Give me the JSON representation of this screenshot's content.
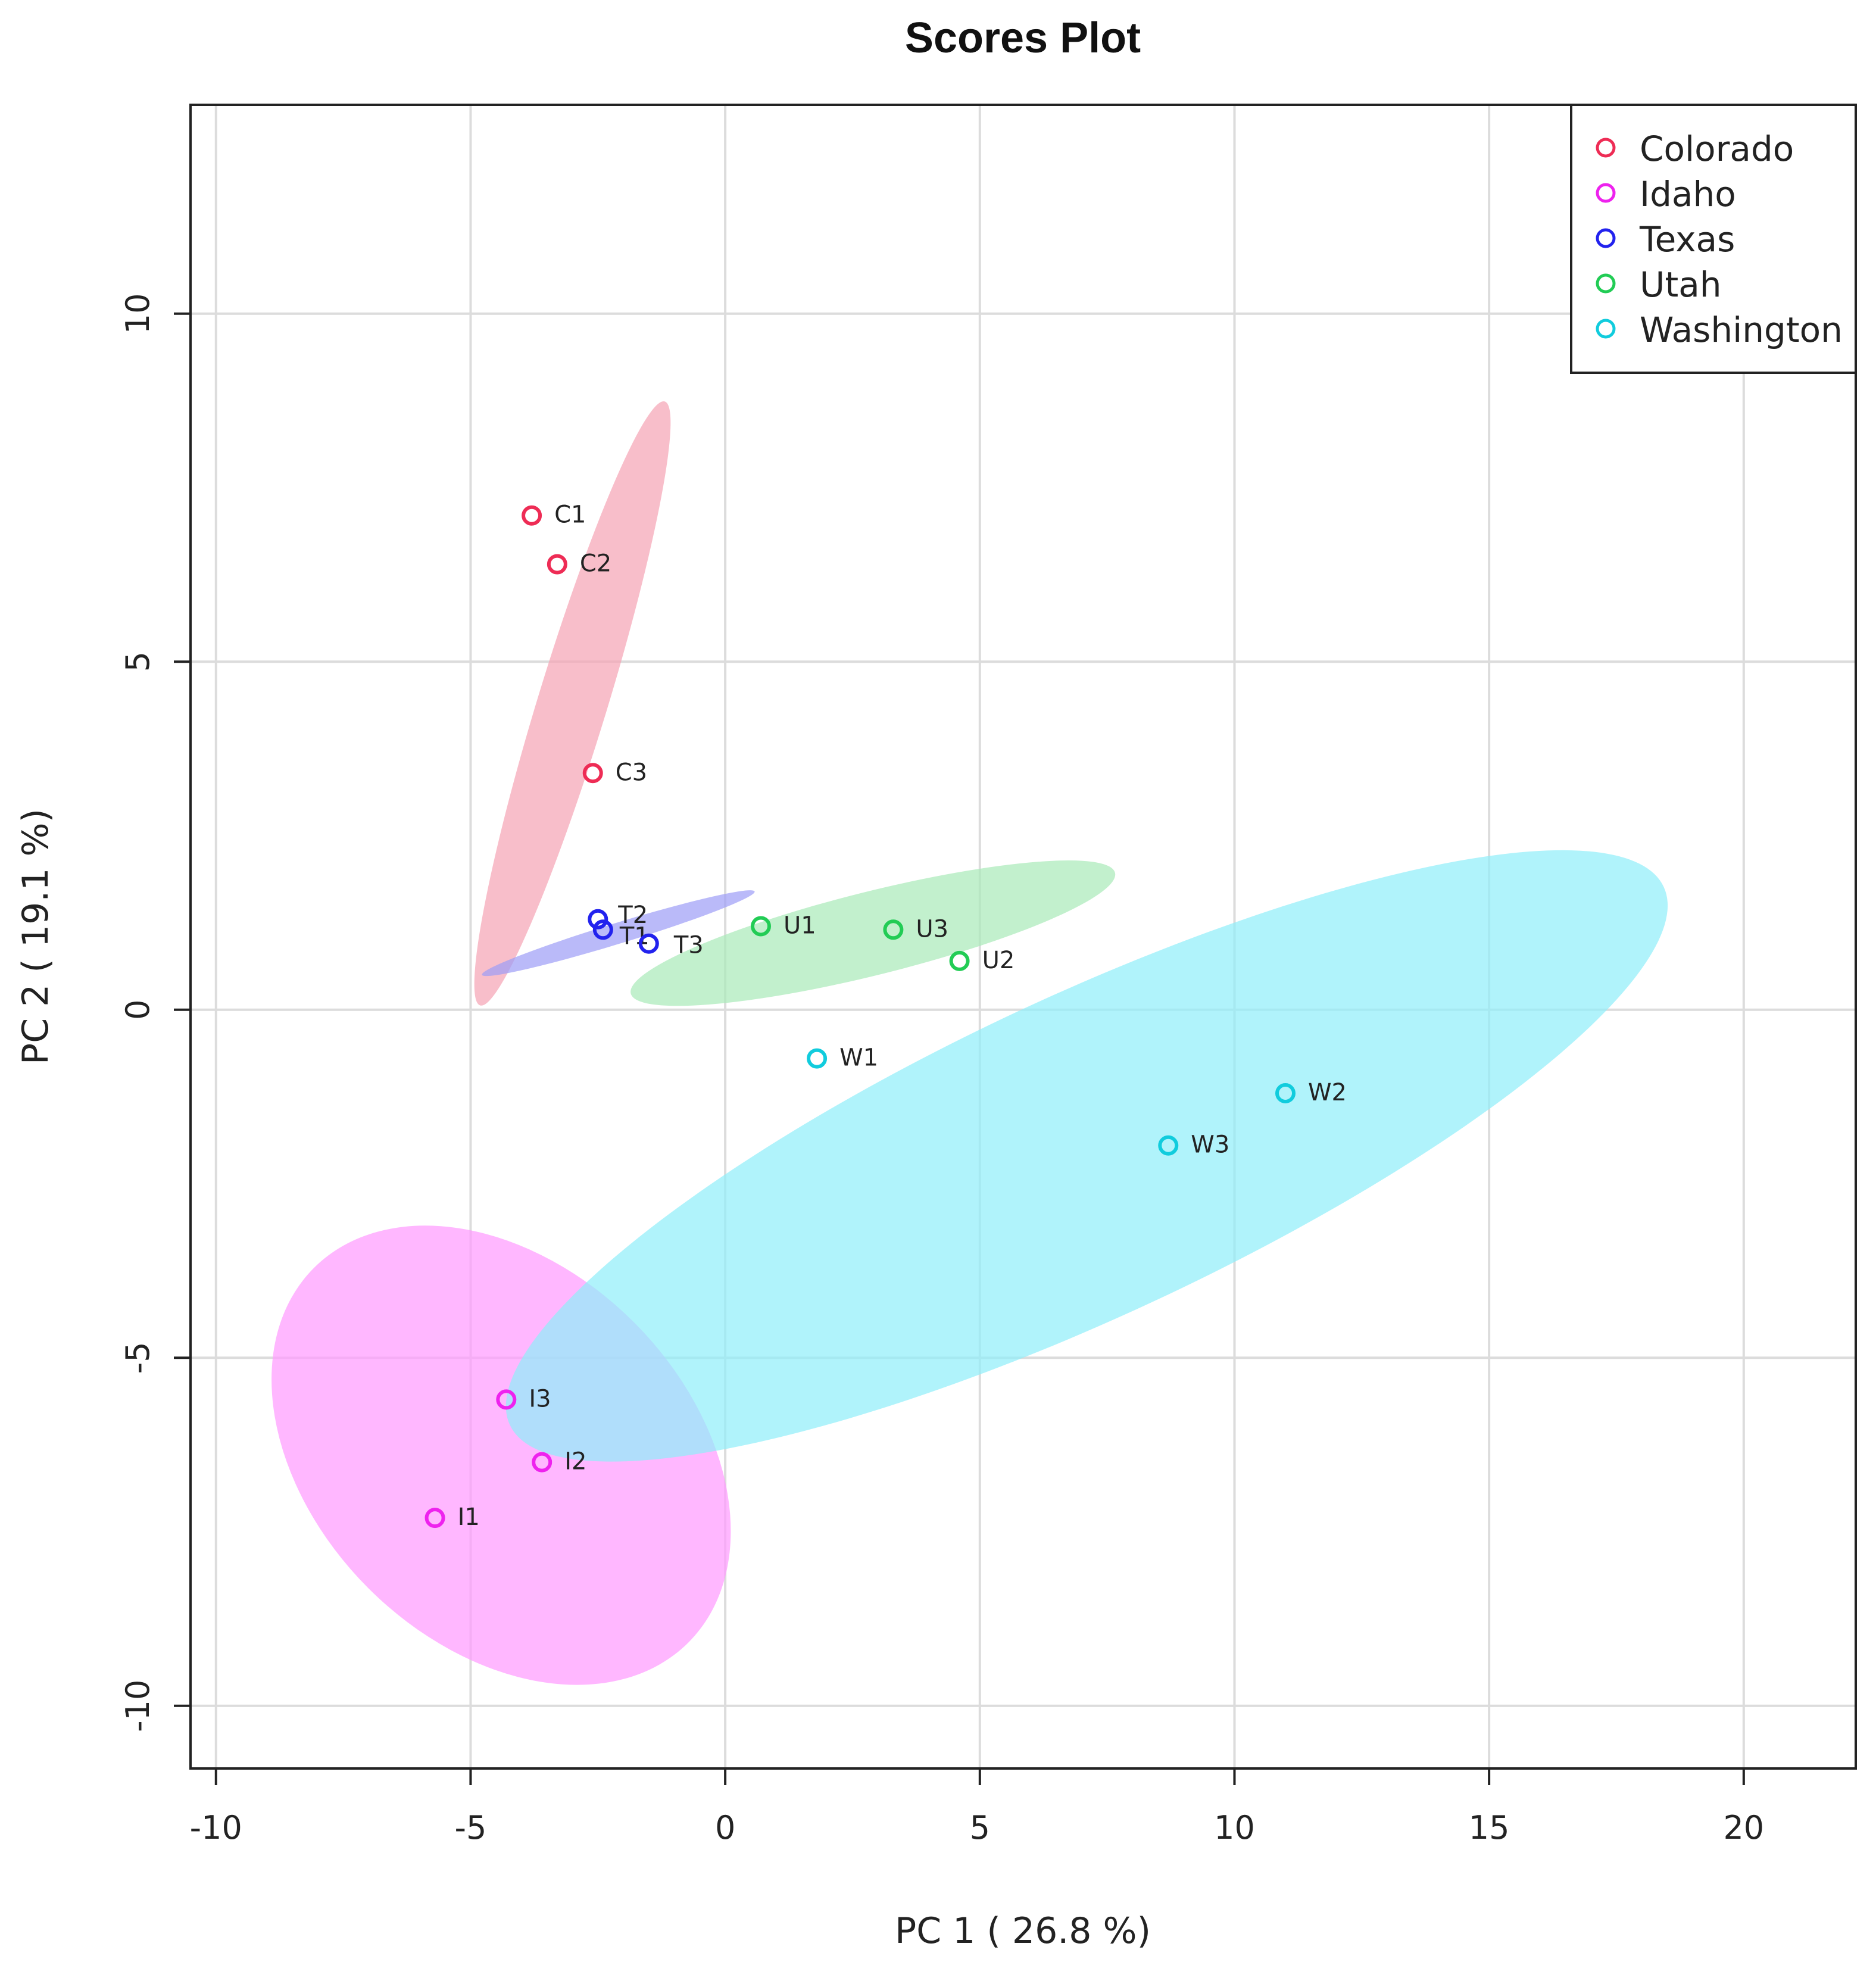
{
  "chart_data": {
    "type": "scatter",
    "title": "Scores Plot",
    "xlabel": "PC 1 ( 26.8 %)",
    "ylabel": "PC 2 ( 19.1 %)",
    "xlim": [
      -10.5,
      22.2
    ],
    "ylim": [
      -10.9,
      13.0
    ],
    "xticks": [
      -10,
      -5,
      0,
      5,
      10,
      15,
      20
    ],
    "yticks": [
      -10,
      -5,
      0,
      5,
      10
    ],
    "xtick_labels": [
      "-10",
      "-5",
      "0",
      "5",
      "10",
      "15",
      "20"
    ],
    "ytick_labels": [
      "-10",
      "-5",
      "0",
      "5",
      "10"
    ],
    "grid": true,
    "legend_position": "top-right",
    "series": [
      {
        "name": "Colorado",
        "color": "#ee2c55",
        "fill": "#f5a3b3",
        "ellipse": {
          "cx": -3.0,
          "cy": 4.4,
          "rx": 6.2,
          "ry": 0.5,
          "angle_deg": -73
        },
        "points": [
          {
            "label": "C1",
            "x": -3.8,
            "y": 7.1
          },
          {
            "label": "C2",
            "x": -3.3,
            "y": 6.4
          },
          {
            "label": "C3",
            "x": -2.6,
            "y": 3.4
          }
        ]
      },
      {
        "name": "Idaho",
        "color": "#ee22ee",
        "fill": "#ff99ff",
        "ellipse": {
          "cx": -4.4,
          "cy": -6.4,
          "rx": 5.2,
          "ry": 2.7,
          "angle_deg": 45
        },
        "points": [
          {
            "label": "I1",
            "x": -5.7,
            "y": -7.3
          },
          {
            "label": "I2",
            "x": -3.6,
            "y": -6.5
          },
          {
            "label": "I3",
            "x": -4.3,
            "y": -5.6
          }
        ]
      },
      {
        "name": "Texas",
        "color": "#2222ee",
        "fill": "#9c9cf6",
        "ellipse": {
          "cx": -2.1,
          "cy": 1.1,
          "rx": 2.8,
          "ry": 0.15,
          "angle_deg": -17
        },
        "points": [
          {
            "label": "T2",
            "x": -2.5,
            "y": 1.3
          },
          {
            "label": "T1",
            "x": -2.4,
            "y": 1.15
          },
          {
            "label": "T3",
            "x": -1.5,
            "y": 0.95
          }
        ]
      },
      {
        "name": "Utah",
        "color": "#22cc55",
        "fill": "#a8eab8",
        "ellipse": {
          "cx": 2.9,
          "cy": 1.1,
          "rx": 4.9,
          "ry": 0.6,
          "angle_deg": -14
        },
        "points": [
          {
            "label": "U1",
            "x": 0.7,
            "y": 1.2
          },
          {
            "label": "U3",
            "x": 3.3,
            "y": 1.15
          },
          {
            "label": "U2",
            "x": 4.6,
            "y": 0.7
          }
        ]
      },
      {
        "name": "Washington",
        "color": "#11ccdd",
        "fill": "#8eeefa",
        "ellipse": {
          "cx": 7.1,
          "cy": -2.1,
          "rx": 12.5,
          "ry": 2.3,
          "angle_deg": -25
        },
        "points": [
          {
            "label": "W1",
            "x": 1.8,
            "y": -0.7
          },
          {
            "label": "W2",
            "x": 11.0,
            "y": -1.2
          },
          {
            "label": "W3",
            "x": 8.7,
            "y": -1.95
          }
        ]
      }
    ]
  }
}
